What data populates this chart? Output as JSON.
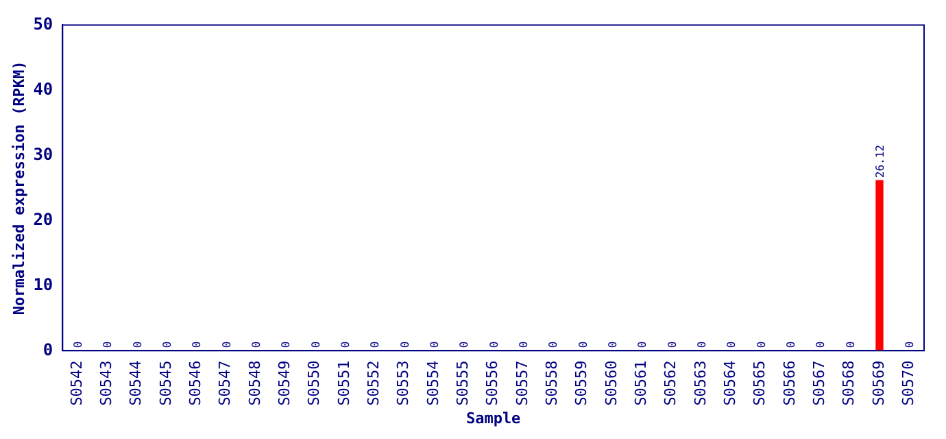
{
  "chart_data": {
    "type": "bar",
    "xlabel": "Sample",
    "ylabel": "Normalized expression (RPKM)",
    "categories": [
      "S0542",
      "S0543",
      "S0544",
      "S0545",
      "S0546",
      "S0547",
      "S0548",
      "S0549",
      "S0550",
      "S0551",
      "S0552",
      "S0553",
      "S0554",
      "S0555",
      "S0556",
      "S0557",
      "S0558",
      "S0559",
      "S0560",
      "S0561",
      "S0562",
      "S0563",
      "S0564",
      "S0565",
      "S0566",
      "S0567",
      "S0568",
      "S0569",
      "S0570"
    ],
    "values": [
      0,
      0,
      0,
      0,
      0,
      0,
      0,
      0,
      0,
      0,
      0,
      0,
      0,
      0,
      0,
      0,
      0,
      0,
      0,
      0,
      0,
      0,
      0,
      0,
      0,
      0,
      0,
      26.12,
      0
    ],
    "color": "#ff0000",
    "ylim": [
      0,
      50
    ],
    "yticks": [
      0,
      10,
      20,
      30,
      40,
      50
    ],
    "grid": false,
    "legend": false,
    "data_labels": true
  }
}
